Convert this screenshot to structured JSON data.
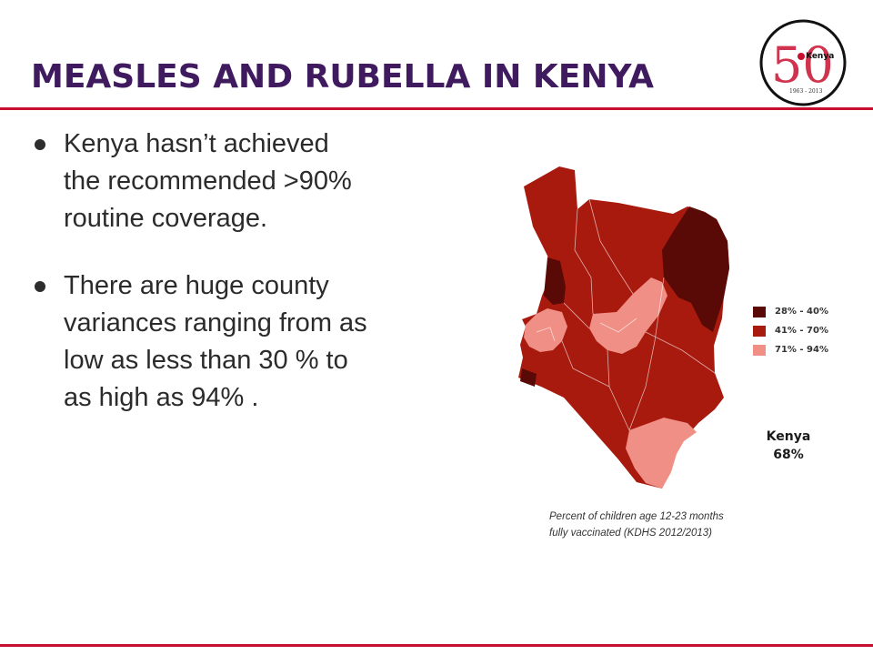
{
  "slide": {
    "title": "MEASLES AND RUBELLA IN KENYA"
  },
  "bullets": [
    {
      "lines": [
        "Kenya hasn’t achieved",
        "the recommended >90%",
        "routine coverage."
      ]
    },
    {
      "lines": [
        "There are huge county",
        "variances ranging from as",
        "low as less than 30 % to",
        "as high as 94% ."
      ]
    }
  ],
  "map": {
    "legend": [
      {
        "label": "28% - 40%",
        "color": "#5a0a06"
      },
      {
        "label": "41% - 70%",
        "color": "#a8190e"
      },
      {
        "label": "71% - 94%",
        "color": "#f08f85"
      }
    ],
    "national_label": "Kenya",
    "national_value": "68%",
    "caption": [
      "Percent of children age 12-23 months",
      "fully vaccinated (KDHS 2012/2013)"
    ]
  },
  "logo": {
    "number": "50",
    "name": "Kenya",
    "years": "1963 - 2013"
  },
  "colors": {
    "title": "#3f1a5f",
    "rule": "#c8102e"
  }
}
